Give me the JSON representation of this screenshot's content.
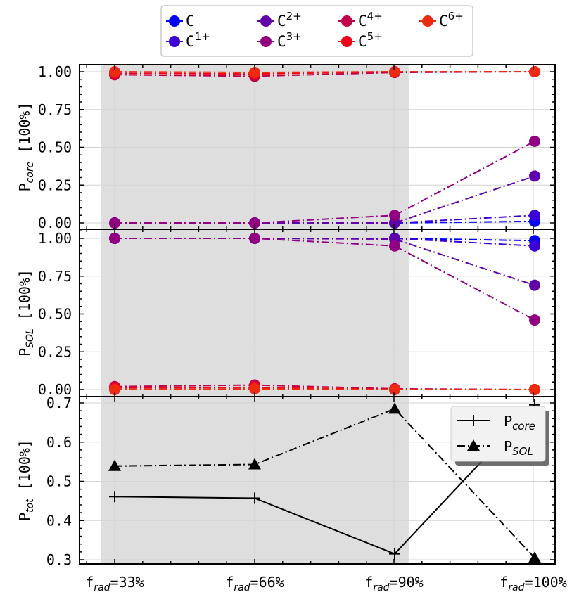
{
  "chart_data": [
    {
      "type": "line",
      "ylabel": {
        "main": "P",
        "sub": "core",
        "unit": "[100%]"
      },
      "ylim": [
        -0.03,
        1.05
      ],
      "yticks": [
        "0.00",
        "0.25",
        "0.50",
        "0.75",
        "1.00"
      ],
      "yticks_values": [
        0,
        0.25,
        0.5,
        0.75,
        1.0
      ],
      "grid": true,
      "shaded_region": {
        "from": 0.8,
        "to": 2.1
      },
      "categories": [
        "f_rad=33%",
        "f_rad=66%",
        "f_rad=90%",
        "f_rad=100%"
      ],
      "series": [
        {
          "name": "C",
          "label_base": "C",
          "label_sup": "",
          "color": "#0000ff",
          "values": [
            0.0,
            0.0,
            0.0,
            0.01
          ]
        },
        {
          "name": "C1+",
          "label_base": "C",
          "label_sup": "1+",
          "color": "#3a00d6",
          "values": [
            0.0,
            0.0,
            0.0,
            0.05
          ]
        },
        {
          "name": "C2+",
          "label_base": "C",
          "label_sup": "2+",
          "color": "#6000aa",
          "values": [
            0.0,
            0.0,
            0.0,
            0.31
          ]
        },
        {
          "name": "C3+",
          "label_base": "C",
          "label_sup": "3+",
          "color": "#900080",
          "values": [
            0.0,
            0.0,
            0.05,
            0.54
          ]
        },
        {
          "name": "C4+",
          "label_base": "C",
          "label_sup": "4+",
          "color": "#c0004a",
          "values": [
            0.98,
            0.97,
            0.995,
            1.0
          ]
        },
        {
          "name": "C5+",
          "label_base": "C",
          "label_sup": "5+",
          "color": "#ee0018",
          "values": [
            0.99,
            0.985,
            1.0,
            1.0
          ]
        },
        {
          "name": "C6+",
          "label_base": "C",
          "label_sup": "6+",
          "color": "#ee2a10",
          "values": [
            1.0,
            0.995,
            1.0,
            1.0
          ]
        }
      ]
    },
    {
      "type": "line",
      "ylabel": {
        "main": "P",
        "sub": "SOL",
        "unit": "[100%]"
      },
      "ylim": [
        -0.05,
        1.04
      ],
      "yticks": [
        "0.00",
        "0.25",
        "0.50",
        "0.75",
        "1.00"
      ],
      "yticks_values": [
        0,
        0.25,
        0.5,
        0.75,
        1.0
      ],
      "grid": true,
      "shaded_region": {
        "from": 0.8,
        "to": 2.1
      },
      "categories": [
        "f_rad=33%",
        "f_rad=66%",
        "f_rad=90%",
        "f_rad=100%"
      ],
      "series": [
        {
          "name": "C",
          "color": "#0000ff",
          "values": [
            1.0,
            1.0,
            1.0,
            0.985
          ]
        },
        {
          "name": "C1+",
          "color": "#3a00d6",
          "values": [
            1.0,
            1.0,
            1.0,
            0.95
          ]
        },
        {
          "name": "C2+",
          "color": "#6000aa",
          "values": [
            1.0,
            1.0,
            0.995,
            0.69
          ]
        },
        {
          "name": "C3+",
          "color": "#900080",
          "values": [
            1.0,
            1.0,
            0.95,
            0.46
          ]
        },
        {
          "name": "C4+",
          "color": "#c0004a",
          "values": [
            0.02,
            0.03,
            0.005,
            0.0
          ]
        },
        {
          "name": "C5+",
          "color": "#ee0018",
          "values": [
            0.01,
            0.015,
            0.0,
            0.0
          ]
        },
        {
          "name": "C6+",
          "color": "#ee2a10",
          "values": [
            0.0,
            0.005,
            0.0,
            0.0
          ]
        }
      ]
    },
    {
      "type": "line",
      "ylabel": {
        "main": "P",
        "sub": "tot",
        "unit": "[100%]"
      },
      "ylim": [
        0.29,
        0.71
      ],
      "yticks": [
        "0.3",
        "0.4",
        "0.5",
        "0.6",
        "0.7"
      ],
      "yticks_values": [
        0.3,
        0.4,
        0.5,
        0.6,
        0.7
      ],
      "grid": true,
      "shaded_region": {
        "from": 0.8,
        "to": 2.1
      },
      "categories": [
        "f_rad=33%",
        "f_rad=66%",
        "f_rad=90%",
        "f_rad=100%"
      ],
      "series": [
        {
          "name": "P_core",
          "label_main": "P",
          "label_sub": "core",
          "color": "#000000",
          "marker": "plus",
          "linestyle": "solid",
          "values": [
            0.461,
            0.457,
            0.315,
            0.695
          ]
        },
        {
          "name": "P_SOL",
          "label_main": "P",
          "label_sub": "SOL",
          "color": "#000000",
          "marker": "triangle",
          "linestyle": "dashdot",
          "values": [
            0.539,
            0.543,
            0.685,
            0.305
          ]
        }
      ]
    }
  ],
  "xaxis": {
    "ticks": [
      {
        "main": "f",
        "sub": "rad",
        "rest": "=33%"
      },
      {
        "main": "f",
        "sub": "rad",
        "rest": "=66%"
      },
      {
        "main": "f",
        "sub": "rad",
        "rest": "=90%"
      },
      {
        "main": "f",
        "sub": "rad",
        "rest": "=100%"
      }
    ]
  },
  "colors": {
    "shade": "#dedede",
    "grid": "#d3d3d3"
  }
}
